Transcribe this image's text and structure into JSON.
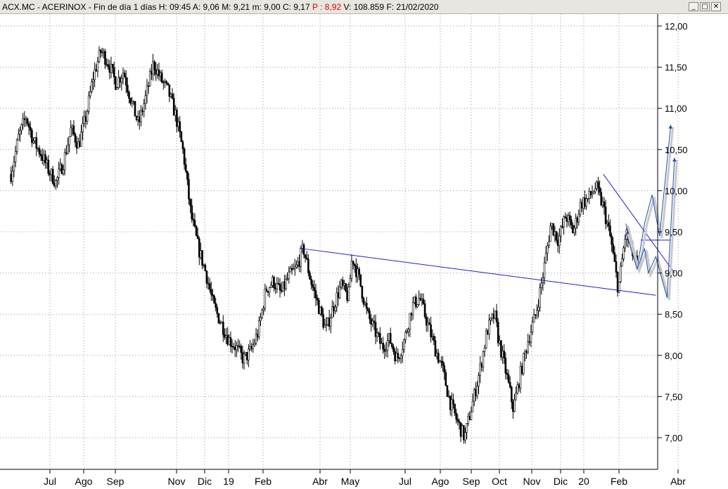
{
  "window": {
    "symbol": "ACX.MC - ACERINOX",
    "period": "Fin de día 1 días",
    "high": "H: 09:45",
    "open": "A: 9,06",
    "max": "M: 9,21",
    "min": "m: 9,00",
    "close": "C: 9,17",
    "pointer": "P : 8,92",
    "volume": "V: 108.859",
    "date": "F: 21/02/2020",
    "btn_min": "_",
    "btn_max": "□",
    "btn_close": "✕"
  },
  "chart_data": {
    "type": "candlestick",
    "title": "",
    "xlabel": "",
    "ylabel": "",
    "ylim": [
      6.93,
      12.13
    ],
    "y_ticks": [
      "12,00",
      "11,50",
      "11,00",
      "10,50",
      "10,00",
      "9,50",
      "9,00",
      "8,50",
      "8,00",
      "7,50",
      "7,00"
    ],
    "x_tick_labels": [
      "Jul",
      "Ago",
      "Sep",
      "Nov",
      "Dic",
      "19",
      "Feb",
      "Abr",
      "May",
      "Jul",
      "Ago",
      "Sep",
      "Oct",
      "Nov",
      "Dic",
      "20",
      "Feb",
      "Abr"
    ],
    "grid": true,
    "close_path": [
      [
        2018.47,
        10.2
      ],
      [
        2018.49,
        10.65
      ],
      [
        2018.51,
        10.9
      ],
      [
        2018.53,
        10.6
      ],
      [
        2018.55,
        10.45
      ],
      [
        2018.57,
        10.25
      ],
      [
        2018.59,
        10.1
      ],
      [
        2018.61,
        10.35
      ],
      [
        2018.63,
        10.75
      ],
      [
        2018.65,
        10.55
      ],
      [
        2018.67,
        10.9
      ],
      [
        2018.69,
        11.4
      ],
      [
        2018.71,
        11.7
      ],
      [
        2018.73,
        11.55
      ],
      [
        2018.75,
        11.3
      ],
      [
        2018.77,
        11.45
      ],
      [
        2018.79,
        11.1
      ],
      [
        2018.81,
        10.8
      ],
      [
        2018.83,
        11.15
      ],
      [
        2018.85,
        11.55
      ],
      [
        2018.87,
        11.35
      ],
      [
        2018.89,
        11.2
      ],
      [
        2018.91,
        10.9
      ],
      [
        2018.93,
        10.45
      ],
      [
        2018.95,
        9.7
      ],
      [
        2018.97,
        9.3
      ],
      [
        2018.99,
        9.0
      ],
      [
        2019.01,
        8.6
      ],
      [
        2019.03,
        8.4
      ],
      [
        2019.05,
        8.2
      ],
      [
        2019.07,
        8.1
      ],
      [
        2019.09,
        7.95
      ],
      [
        2019.11,
        8.05
      ],
      [
        2019.13,
        8.3
      ],
      [
        2019.15,
        8.8
      ],
      [
        2019.17,
        8.9
      ],
      [
        2019.19,
        8.75
      ],
      [
        2019.21,
        8.95
      ],
      [
        2019.23,
        9.05
      ],
      [
        2019.25,
        9.3
      ],
      [
        2019.27,
        8.9
      ],
      [
        2019.29,
        8.6
      ],
      [
        2019.31,
        8.3
      ],
      [
        2019.33,
        8.6
      ],
      [
        2019.35,
        8.85
      ],
      [
        2019.37,
        8.7
      ],
      [
        2019.38,
        9.2
      ],
      [
        2019.4,
        8.9
      ],
      [
        2019.42,
        8.5
      ],
      [
        2019.44,
        8.3
      ],
      [
        2019.46,
        8.1
      ],
      [
        2019.48,
        8.2
      ],
      [
        2019.5,
        7.95
      ],
      [
        2019.52,
        8.2
      ],
      [
        2019.54,
        8.6
      ],
      [
        2019.56,
        8.7
      ],
      [
        2019.58,
        8.4
      ],
      [
        2019.6,
        8.1
      ],
      [
        2019.62,
        7.85
      ],
      [
        2019.64,
        7.45
      ],
      [
        2019.66,
        7.2
      ],
      [
        2019.68,
        7.0
      ],
      [
        2019.7,
        7.4
      ],
      [
        2019.72,
        7.8
      ],
      [
        2019.74,
        8.3
      ],
      [
        2019.76,
        8.5
      ],
      [
        2019.77,
        8.2
      ],
      [
        2019.79,
        7.8
      ],
      [
        2019.81,
        7.35
      ],
      [
        2019.83,
        7.8
      ],
      [
        2019.85,
        8.2
      ],
      [
        2019.87,
        8.5
      ],
      [
        2019.89,
        9.0
      ],
      [
        2019.91,
        9.6
      ],
      [
        2019.93,
        9.4
      ],
      [
        2019.95,
        9.7
      ],
      [
        2019.97,
        9.5
      ],
      [
        2019.99,
        9.85
      ],
      [
        2020.01,
        9.9
      ],
      [
        2020.03,
        10.05
      ],
      [
        2020.05,
        9.8
      ],
      [
        2020.07,
        9.4
      ],
      [
        2020.09,
        8.8
      ],
      [
        2020.11,
        9.5
      ],
      [
        2020.13,
        9.2
      ],
      [
        2020.14,
        9.1
      ]
    ],
    "trendlines": [
      {
        "from": [
          2019.24,
          9.3
        ],
        "to": [
          2020.19,
          8.73
        ]
      },
      {
        "from": [
          2020.05,
          10.2
        ],
        "to": [
          2020.24,
          9.0
        ]
      },
      {
        "from": [
          2020.15,
          9.4
        ],
        "to": [
          2020.23,
          9.4
        ]
      }
    ],
    "projections": [
      [
        [
          2020.11,
          9.6
        ],
        [
          2020.14,
          9.05
        ],
        [
          2020.16,
          9.6
        ],
        [
          2020.18,
          9.95
        ],
        [
          2020.2,
          9.45
        ],
        [
          2020.23,
          10.8
        ]
      ],
      [
        [
          2020.11,
          9.5
        ],
        [
          2020.14,
          9.05
        ],
        [
          2020.16,
          9.3
        ],
        [
          2020.17,
          9.0
        ],
        [
          2020.19,
          9.2
        ],
        [
          2020.22,
          8.7
        ],
        [
          2020.24,
          10.4
        ]
      ]
    ]
  }
}
